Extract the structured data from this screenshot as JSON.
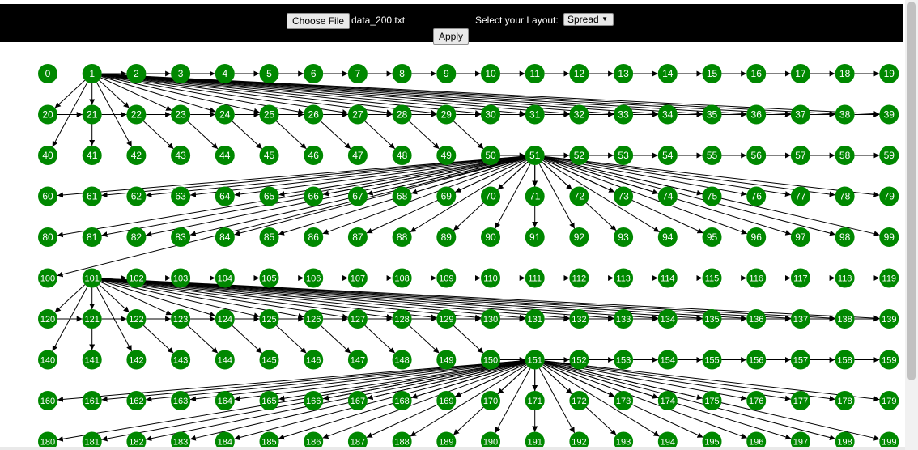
{
  "toolbar": {
    "choose_file_label": "Choose File",
    "file_name": "data_200.txt",
    "layout_label": "Select your Layout:",
    "layout_value": "Spread",
    "apply_label": "Apply"
  },
  "graph": {
    "node_color": "#008800",
    "node_label_color": "#ffffff",
    "edge_color": "#000000",
    "node_count": 200,
    "columns": 20,
    "edges": [
      [
        1,
        2
      ],
      [
        2,
        3
      ],
      [
        3,
        4
      ],
      [
        4,
        5
      ],
      [
        5,
        6
      ],
      [
        6,
        7
      ],
      [
        7,
        8
      ],
      [
        8,
        9
      ],
      [
        9,
        10
      ],
      [
        10,
        11
      ],
      [
        11,
        12
      ],
      [
        12,
        13
      ],
      [
        13,
        14
      ],
      [
        14,
        15
      ],
      [
        15,
        16
      ],
      [
        16,
        17
      ],
      [
        17,
        18
      ],
      [
        18,
        19
      ],
      [
        1,
        20
      ],
      [
        1,
        21
      ],
      [
        1,
        22
      ],
      [
        1,
        23
      ],
      [
        1,
        24
      ],
      [
        1,
        25
      ],
      [
        1,
        26
      ],
      [
        1,
        27
      ],
      [
        1,
        28
      ],
      [
        1,
        29
      ],
      [
        1,
        30
      ],
      [
        1,
        31
      ],
      [
        1,
        32
      ],
      [
        1,
        33
      ],
      [
        1,
        34
      ],
      [
        1,
        35
      ],
      [
        1,
        36
      ],
      [
        1,
        37
      ],
      [
        1,
        38
      ],
      [
        1,
        39
      ],
      [
        1,
        40
      ],
      [
        1,
        42
      ],
      [
        21,
        41
      ],
      [
        22,
        43
      ],
      [
        23,
        44
      ],
      [
        24,
        45
      ],
      [
        25,
        46
      ],
      [
        26,
        47
      ],
      [
        27,
        48
      ],
      [
        28,
        49
      ],
      [
        29,
        50
      ],
      [
        20,
        21
      ],
      [
        21,
        22
      ],
      [
        22,
        23
      ],
      [
        23,
        24
      ],
      [
        24,
        25
      ],
      [
        25,
        26
      ],
      [
        26,
        27
      ],
      [
        27,
        28
      ],
      [
        28,
        29
      ],
      [
        29,
        30
      ],
      [
        30,
        31
      ],
      [
        31,
        32
      ],
      [
        32,
        33
      ],
      [
        33,
        34
      ],
      [
        34,
        35
      ],
      [
        35,
        36
      ],
      [
        36,
        37
      ],
      [
        37,
        38
      ],
      [
        38,
        39
      ],
      [
        50,
        51
      ],
      [
        51,
        52
      ],
      [
        52,
        53
      ],
      [
        53,
        54
      ],
      [
        54,
        55
      ],
      [
        55,
        56
      ],
      [
        56,
        57
      ],
      [
        57,
        58
      ],
      [
        58,
        59
      ],
      [
        51,
        60
      ],
      [
        51,
        61
      ],
      [
        51,
        62
      ],
      [
        51,
        63
      ],
      [
        51,
        64
      ],
      [
        51,
        65
      ],
      [
        51,
        66
      ],
      [
        51,
        67
      ],
      [
        51,
        68
      ],
      [
        51,
        69
      ],
      [
        51,
        70
      ],
      [
        51,
        71
      ],
      [
        51,
        72
      ],
      [
        51,
        73
      ],
      [
        51,
        74
      ],
      [
        51,
        75
      ],
      [
        51,
        76
      ],
      [
        51,
        77
      ],
      [
        51,
        78
      ],
      [
        51,
        79
      ],
      [
        51,
        80
      ],
      [
        51,
        81
      ],
      [
        51,
        82
      ],
      [
        51,
        83
      ],
      [
        51,
        84
      ],
      [
        51,
        85
      ],
      [
        51,
        86
      ],
      [
        51,
        87
      ],
      [
        51,
        88
      ],
      [
        51,
        89
      ],
      [
        51,
        90
      ],
      [
        51,
        91
      ],
      [
        51,
        92
      ],
      [
        51,
        93
      ],
      [
        51,
        94
      ],
      [
        51,
        95
      ],
      [
        51,
        96
      ],
      [
        51,
        97
      ],
      [
        51,
        98
      ],
      [
        51,
        99
      ],
      [
        51,
        100
      ],
      [
        101,
        102
      ],
      [
        102,
        103
      ],
      [
        103,
        104
      ],
      [
        104,
        105
      ],
      [
        105,
        106
      ],
      [
        106,
        107
      ],
      [
        107,
        108
      ],
      [
        108,
        109
      ],
      [
        109,
        110
      ],
      [
        110,
        111
      ],
      [
        111,
        112
      ],
      [
        112,
        113
      ],
      [
        113,
        114
      ],
      [
        114,
        115
      ],
      [
        115,
        116
      ],
      [
        116,
        117
      ],
      [
        117,
        118
      ],
      [
        118,
        119
      ],
      [
        101,
        120
      ],
      [
        101,
        121
      ],
      [
        101,
        122
      ],
      [
        101,
        123
      ],
      [
        101,
        124
      ],
      [
        101,
        125
      ],
      [
        101,
        126
      ],
      [
        101,
        127
      ],
      [
        101,
        128
      ],
      [
        101,
        129
      ],
      [
        101,
        130
      ],
      [
        101,
        131
      ],
      [
        101,
        132
      ],
      [
        101,
        133
      ],
      [
        101,
        134
      ],
      [
        101,
        135
      ],
      [
        101,
        136
      ],
      [
        101,
        137
      ],
      [
        101,
        138
      ],
      [
        101,
        139
      ],
      [
        101,
        140
      ],
      [
        101,
        142
      ],
      [
        121,
        141
      ],
      [
        122,
        143
      ],
      [
        123,
        144
      ],
      [
        124,
        145
      ],
      [
        125,
        146
      ],
      [
        126,
        147
      ],
      [
        127,
        148
      ],
      [
        128,
        149
      ],
      [
        129,
        150
      ],
      [
        120,
        121
      ],
      [
        121,
        122
      ],
      [
        122,
        123
      ],
      [
        123,
        124
      ],
      [
        124,
        125
      ],
      [
        125,
        126
      ],
      [
        126,
        127
      ],
      [
        127,
        128
      ],
      [
        128,
        129
      ],
      [
        129,
        130
      ],
      [
        130,
        131
      ],
      [
        131,
        132
      ],
      [
        132,
        133
      ],
      [
        133,
        134
      ],
      [
        134,
        135
      ],
      [
        135,
        136
      ],
      [
        136,
        137
      ],
      [
        137,
        138
      ],
      [
        138,
        139
      ],
      [
        150,
        151
      ],
      [
        151,
        152
      ],
      [
        152,
        153
      ],
      [
        153,
        154
      ],
      [
        154,
        155
      ],
      [
        155,
        156
      ],
      [
        156,
        157
      ],
      [
        157,
        158
      ],
      [
        158,
        159
      ],
      [
        151,
        160
      ],
      [
        151,
        161
      ],
      [
        151,
        162
      ],
      [
        151,
        163
      ],
      [
        151,
        164
      ],
      [
        151,
        165
      ],
      [
        151,
        166
      ],
      [
        151,
        167
      ],
      [
        151,
        168
      ],
      [
        151,
        169
      ],
      [
        151,
        170
      ],
      [
        151,
        171
      ],
      [
        151,
        172
      ],
      [
        151,
        173
      ],
      [
        151,
        174
      ],
      [
        151,
        175
      ],
      [
        151,
        176
      ],
      [
        151,
        177
      ],
      [
        151,
        178
      ],
      [
        151,
        179
      ],
      [
        151,
        180
      ],
      [
        151,
        181
      ],
      [
        151,
        182
      ],
      [
        151,
        183
      ],
      [
        151,
        184
      ],
      [
        151,
        185
      ],
      [
        151,
        186
      ],
      [
        151,
        187
      ],
      [
        151,
        188
      ],
      [
        151,
        189
      ],
      [
        151,
        190
      ],
      [
        151,
        191
      ],
      [
        151,
        192
      ],
      [
        151,
        193
      ],
      [
        151,
        194
      ],
      [
        151,
        195
      ],
      [
        151,
        196
      ],
      [
        151,
        197
      ],
      [
        151,
        198
      ],
      [
        151,
        199
      ]
    ]
  }
}
